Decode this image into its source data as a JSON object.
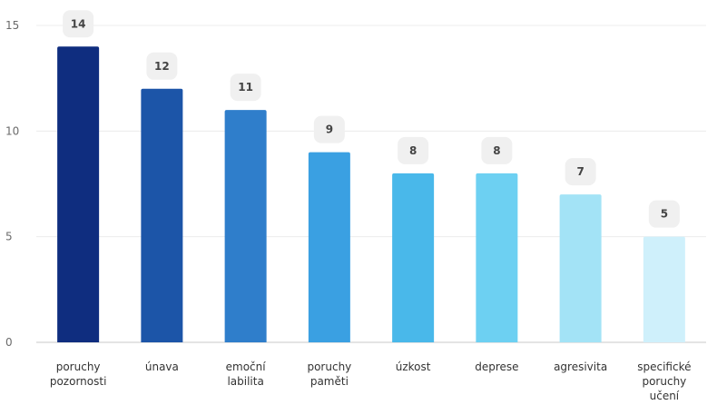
{
  "chart_data": {
    "type": "bar",
    "title": "",
    "xlabel": "",
    "ylabel": "",
    "ylim": [
      0,
      15
    ],
    "yticks": [
      0,
      5,
      10,
      15
    ],
    "grid": true,
    "categories": [
      [
        "poruchy",
        "pozornosti"
      ],
      [
        "únava"
      ],
      [
        "emoční",
        "labilita"
      ],
      [
        "poruchy",
        "paměti"
      ],
      [
        "úzkost"
      ],
      [
        "deprese"
      ],
      [
        "agresivita"
      ],
      [
        "specifické",
        "poruchy",
        "učení"
      ]
    ],
    "values": [
      14,
      12,
      11,
      9,
      8,
      8,
      7,
      5
    ],
    "colors": [
      "#0f2d7f",
      "#1c55a8",
      "#2f7ecb",
      "#3aa0e2",
      "#49b8ea",
      "#6dd0f2",
      "#a3e3f6",
      "#cff0fb"
    ],
    "data_labels": [
      "14",
      "12",
      "11",
      "9",
      "8",
      "8",
      "7",
      "5"
    ]
  }
}
